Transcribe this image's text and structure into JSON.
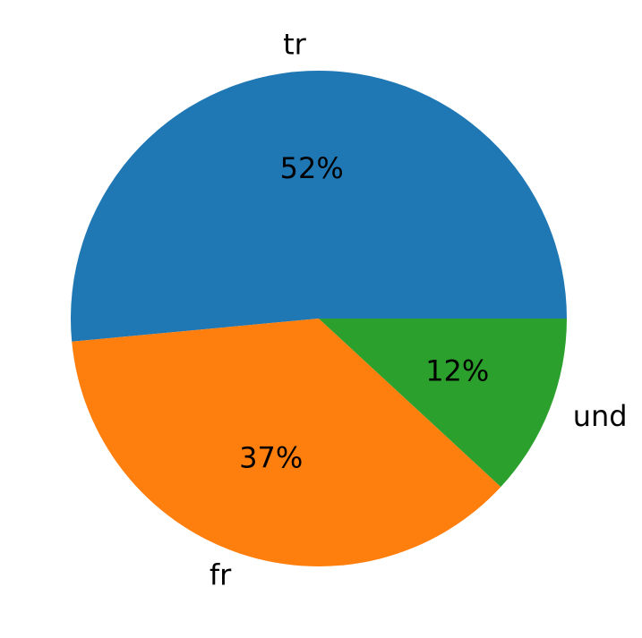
{
  "chart_data": {
    "type": "pie",
    "categories": [
      "tr",
      "fr",
      "und"
    ],
    "values": [
      52,
      37,
      12
    ],
    "value_labels": [
      "52%",
      "37%",
      "12%"
    ],
    "colors": [
      "#1f77b4",
      "#ff7f0e",
      "#2ca02c"
    ]
  }
}
